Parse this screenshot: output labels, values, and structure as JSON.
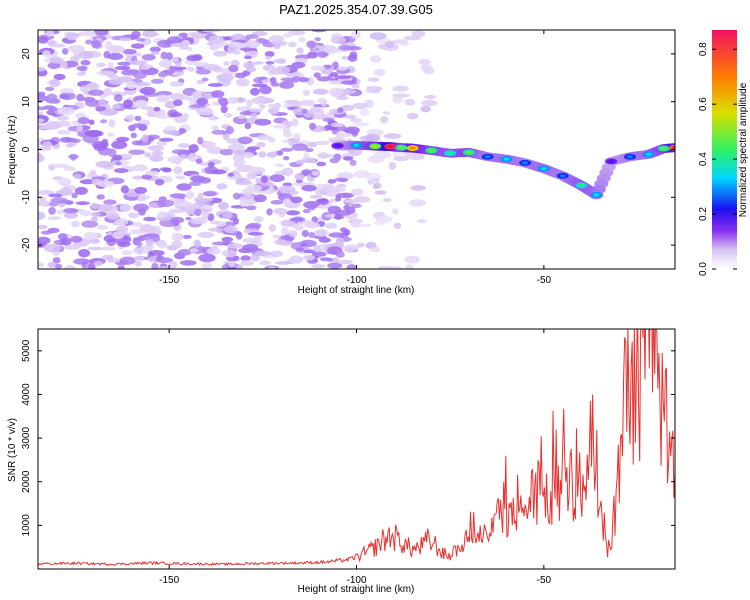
{
  "title": "PAZ1.2025.354.07.39.G05",
  "colors": {
    "snr_line": "#e8312f",
    "colormap": [
      "#ffffff",
      "#d8c4f4",
      "#a070f0",
      "#7a1cf0",
      "#1a10f0",
      "#00d8ff",
      "#30f060",
      "#d8e000",
      "#ff8000",
      "#f01060"
    ]
  },
  "chart_data": [
    {
      "type": "heatmap",
      "title": "PAZ1.2025.354.07.39.G05",
      "xlabel": "Height of straight line (km)",
      "ylabel": "Frequency (Hz)",
      "xlim": [
        -185,
        -15
      ],
      "ylim": [
        -25,
        25
      ],
      "xticks": [
        -150,
        -100,
        -50
      ],
      "yticks": [
        -20,
        -10,
        0,
        10,
        20
      ],
      "colorbar": {
        "label": "Normalized spectral amplitude",
        "range": [
          0,
          0.87
        ],
        "ticks": [
          0,
          0.2,
          0.4,
          0.6,
          0.8
        ]
      },
      "regions": [
        {
          "description": "broad low-amplitude noise",
          "x_range": [
            -185,
            -100
          ],
          "freq_range": [
            -25,
            25
          ],
          "amplitude": 0.1
        },
        {
          "description": "sparse noise",
          "x_range": [
            -100,
            -80
          ],
          "freq_range": [
            -25,
            25
          ],
          "amplitude": 0.05
        }
      ],
      "signal_track": [
        {
          "x": -105,
          "freq": 0.8,
          "amp": 0.3
        },
        {
          "x": -100,
          "freq": 0.9,
          "amp": 0.45
        },
        {
          "x": -95,
          "freq": 0.7,
          "amp": 0.6
        },
        {
          "x": -91,
          "freq": 0.6,
          "amp": 0.85
        },
        {
          "x": -88,
          "freq": 0.4,
          "amp": 0.55
        },
        {
          "x": -85,
          "freq": 0.3,
          "amp": 0.7
        },
        {
          "x": -80,
          "freq": -0.2,
          "amp": 0.55
        },
        {
          "x": -75,
          "freq": -0.8,
          "amp": 0.5
        },
        {
          "x": -70,
          "freq": -0.6,
          "amp": 0.55
        },
        {
          "x": -65,
          "freq": -1.5,
          "amp": 0.4
        },
        {
          "x": -60,
          "freq": -2.0,
          "amp": 0.45
        },
        {
          "x": -55,
          "freq": -2.8,
          "amp": 0.4
        },
        {
          "x": -50,
          "freq": -4.0,
          "amp": 0.45
        },
        {
          "x": -45,
          "freq": -5.5,
          "amp": 0.4
        },
        {
          "x": -40,
          "freq": -7.5,
          "amp": 0.5
        },
        {
          "x": -36,
          "freq": -9.5,
          "amp": 0.45
        },
        {
          "x": -32,
          "freq": -2.5,
          "amp": 0.3
        },
        {
          "x": -27,
          "freq": -1.5,
          "amp": 0.4
        },
        {
          "x": -22,
          "freq": -1.0,
          "amp": 0.45
        },
        {
          "x": -18,
          "freq": 0.2,
          "amp": 0.55
        },
        {
          "x": -15,
          "freq": 0.4,
          "amp": 0.8
        }
      ]
    },
    {
      "type": "line",
      "xlabel": "Height of straight line (km)",
      "ylabel": "SNR (10 * v/v)",
      "xlim": [
        -185,
        -15
      ],
      "ylim": [
        0,
        5500
      ],
      "xticks": [
        -150,
        -100,
        -50
      ],
      "yticks": [
        1000,
        2000,
        3000,
        4000,
        5000
      ],
      "series": [
        {
          "color": "#e8312f",
          "x": [
            -185,
            -175,
            -165,
            -155,
            -145,
            -135,
            -125,
            -115,
            -108,
            -102,
            -98,
            -95,
            -93,
            -91,
            -89,
            -87,
            -85,
            -83,
            -81,
            -79,
            -77,
            -75,
            -73,
            -71,
            -69,
            -67,
            -65,
            -63,
            -61,
            -59,
            -57,
            -55,
            -53,
            -51,
            -49,
            -47,
            -45,
            -43,
            -41,
            -39,
            -37,
            -35,
            -33,
            -31,
            -29,
            -27,
            -25,
            -23,
            -21,
            -19,
            -17,
            -15
          ],
          "y": [
            120,
            130,
            110,
            140,
            120,
            110,
            130,
            140,
            160,
            220,
            350,
            500,
            650,
            750,
            700,
            550,
            450,
            500,
            650,
            550,
            350,
            300,
            400,
            650,
            900,
            800,
            700,
            1000,
            1400,
            1200,
            1100,
            1400,
            1700,
            1600,
            1500,
            1800,
            2000,
            1800,
            1600,
            2200,
            2500,
            1500,
            400,
            1000,
            3500,
            4500,
            4000,
            4800,
            5400,
            3500,
            3200,
            2200
          ]
        }
      ]
    }
  ]
}
